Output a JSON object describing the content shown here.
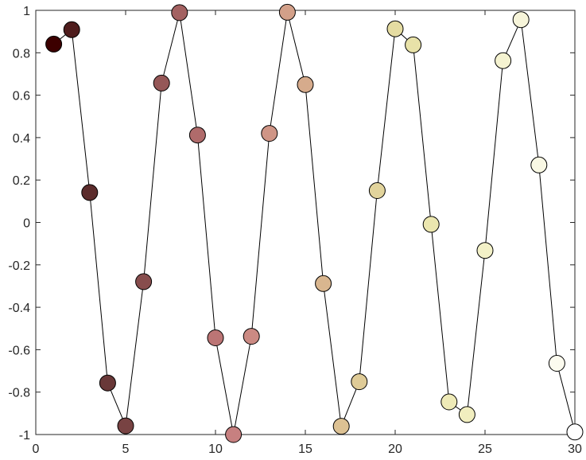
{
  "chart_data": {
    "type": "line",
    "title": "",
    "xlabel": "",
    "ylabel": "",
    "xlim": [
      0,
      30
    ],
    "ylim": [
      -1,
      1
    ],
    "grid": false,
    "legend": "none",
    "x_ticks": [
      0,
      5,
      10,
      15,
      20,
      25,
      30
    ],
    "x_tick_labels": [
      "0",
      "5",
      "10",
      "15",
      "20",
      "25",
      "30"
    ],
    "y_ticks": [
      1,
      0.8,
      0.6,
      0.4,
      0.2,
      0,
      -0.2,
      -0.4,
      -0.6,
      -0.8,
      -1
    ],
    "y_tick_labels": [
      "1",
      "0.8",
      "0.6",
      "0.4",
      "0.2",
      "0",
      "-0.2",
      "-0.4",
      "-0.6",
      "-0.8",
      "-1"
    ],
    "marker": "circle",
    "line_color": "#000000",
    "series": [
      {
        "x": [
          1,
          2,
          3,
          4,
          5,
          6,
          7,
          8,
          9,
          10,
          11,
          12,
          13,
          14,
          15,
          16,
          17,
          18,
          19,
          20,
          21,
          22,
          23,
          24,
          25,
          26,
          27,
          28,
          29,
          30
        ],
        "values": [
          0.841,
          0.909,
          0.141,
          -0.757,
          -0.959,
          -0.279,
          0.657,
          0.989,
          0.412,
          -0.544,
          -1.0,
          -0.537,
          0.42,
          0.991,
          0.65,
          -0.288,
          -0.961,
          -0.751,
          0.15,
          0.913,
          0.837,
          -0.009,
          -0.846,
          -0.906,
          -0.132,
          0.763,
          0.956,
          0.271,
          -0.664,
          -0.988
        ]
      }
    ],
    "marker_colors": [
      "#3c0000",
      "#4f1d1d",
      "#5c2c2c",
      "#693838",
      "#784343",
      "#874d4d",
      "#955757",
      "#a36161",
      "#b06b6b",
      "#bc7575",
      "#c78080",
      "#cb8a83",
      "#cf9586",
      "#d3a089",
      "#d6ab8c",
      "#d9b68f",
      "#dcc193",
      "#dfcb97",
      "#e2d49c",
      "#e5dca2",
      "#e8e2a8",
      "#ebe6af",
      "#eeeab7",
      "#f1eebf",
      "#f3f1c8",
      "#f5f3d1",
      "#f7f5da",
      "#f9f8e4",
      "#fcfbef",
      "#ffffff"
    ]
  }
}
